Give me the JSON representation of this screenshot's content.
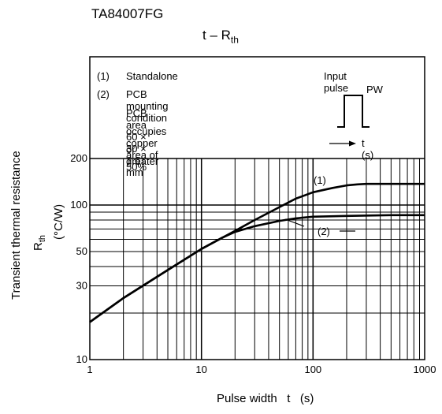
{
  "header": {
    "part_number": "TA84007FG",
    "title_main": "t – R",
    "title_sub": "th"
  },
  "legend": {
    "item1_num": "(1)",
    "item1_text": "Standalone",
    "item2_num": "(2)",
    "item2_line1": "PCB mounting condition",
    "item2_line2": "PCB area 60 × 30 × 1.6 mm",
    "item2_line3": "occupies copper area of 50%",
    "item2_line4": "or greater",
    "input_pulse_label": "Input pulse",
    "pw_label": "PW",
    "t_label": "t (s)"
  },
  "chart_data": {
    "type": "line",
    "title": "t – Rth",
    "xlabel": "Pulse width   t   (s)",
    "ylabel_line1": "Transient thermal resistance",
    "ylabel_line2_main": "R",
    "ylabel_line2_sub": "th",
    "ylabel_unit": "(°C/W)",
    "x_scale": "log",
    "y_scale": "log",
    "xlim": [
      1,
      1000
    ],
    "ylim": [
      10,
      200
    ],
    "x_ticks": [
      {
        "v": 1,
        "label": "1"
      },
      {
        "v": 10,
        "label": "10"
      },
      {
        "v": 100,
        "label": "100"
      },
      {
        "v": 1000,
        "label": "1000"
      }
    ],
    "y_ticks": [
      {
        "v": 10,
        "label": "10"
      },
      {
        "v": 30,
        "label": "30"
      },
      {
        "v": 50,
        "label": "50"
      },
      {
        "v": 100,
        "label": "100"
      },
      {
        "v": 200,
        "label": "200"
      }
    ],
    "grid": true,
    "series": [
      {
        "name": "(1)",
        "x": [
          1,
          2,
          5,
          10,
          20,
          30,
          50,
          70,
          100,
          150,
          200,
          250,
          300,
          500,
          1000
        ],
        "y": [
          17.5,
          25,
          38,
          52,
          68,
          80,
          97,
          110,
          121,
          129,
          134,
          136,
          137,
          137,
          137
        ]
      },
      {
        "name": "(2)",
        "x": [
          1,
          2,
          5,
          10,
          15,
          20,
          30,
          50,
          70,
          100,
          200,
          500,
          1000
        ],
        "y": [
          17.5,
          25,
          38,
          52,
          61,
          67,
          73,
          79,
          82,
          84,
          85,
          86,
          86
        ]
      }
    ]
  }
}
